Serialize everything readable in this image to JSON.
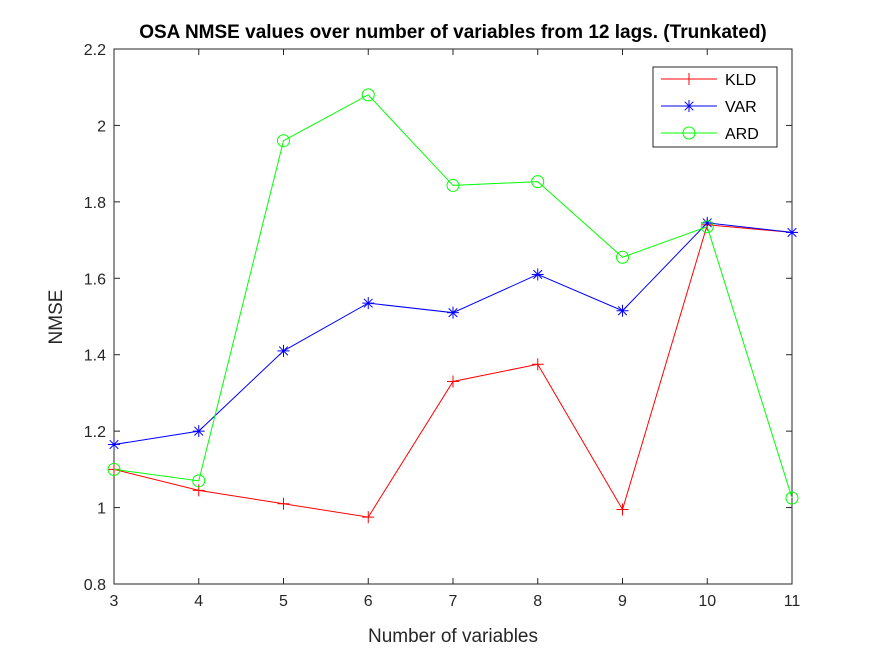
{
  "chart_data": {
    "type": "line",
    "title": "OSA NMSE values over number of variables from 12 lags. (Trunkated)",
    "xlabel": "Number of variables",
    "ylabel": "NMSE",
    "xlim": [
      3,
      11
    ],
    "ylim": [
      0.8,
      2.2
    ],
    "xticks": [
      "3",
      "4",
      "5",
      "6",
      "7",
      "8",
      "9",
      "10",
      "11"
    ],
    "yticks": [
      "0.8",
      "1",
      "1.2",
      "1.4",
      "1.6",
      "1.8",
      "2",
      "2.2"
    ],
    "grid": false,
    "legend_position": "top-right",
    "x": [
      3,
      4,
      5,
      6,
      7,
      8,
      9,
      10,
      11
    ],
    "series": [
      {
        "name": "KLD",
        "marker": "plus",
        "color": "#ff0000",
        "values": [
          1.1,
          1.045,
          1.01,
          0.975,
          1.33,
          1.375,
          0.995,
          1.74,
          1.72
        ]
      },
      {
        "name": "VAR",
        "marker": "asterisk",
        "color": "#0000ff",
        "values": [
          1.165,
          1.2,
          1.41,
          1.535,
          1.51,
          1.61,
          1.515,
          1.745,
          1.72
        ]
      },
      {
        "name": "ARD",
        "marker": "circle",
        "color": "#00ff00",
        "values": [
          1.1,
          1.07,
          1.96,
          2.08,
          1.843,
          1.853,
          1.655,
          1.735,
          1.025
        ]
      }
    ]
  }
}
